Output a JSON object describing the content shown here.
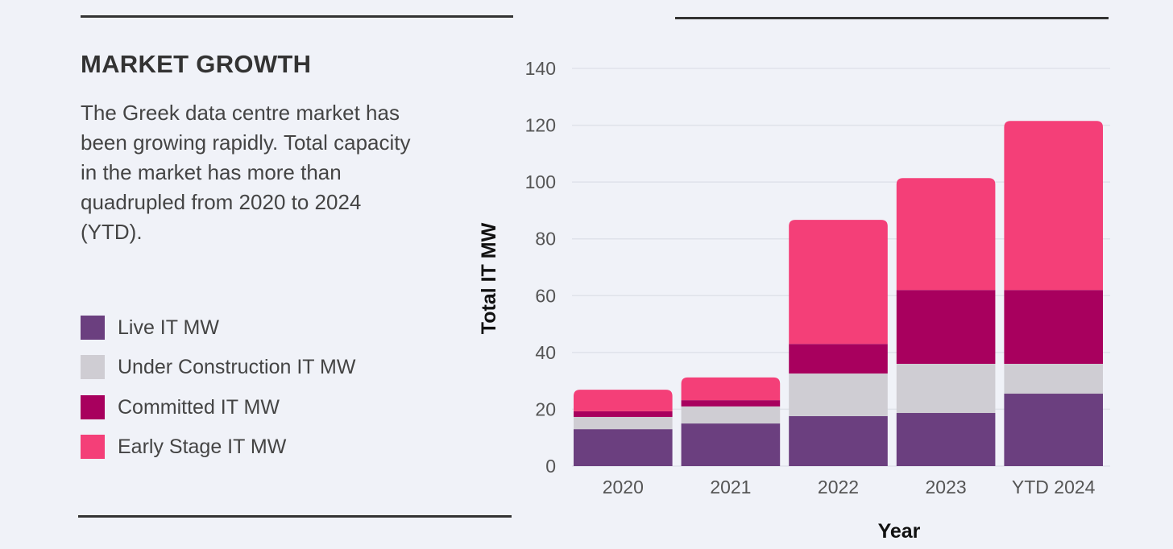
{
  "panel": {
    "title": "MARKET GROWTH",
    "description": "The Greek data centre market has been growing rapidly. Total capacity in the market has more than quadrupled from 2020 to 2024 (YTD)."
  },
  "chart_data": {
    "type": "bar",
    "stacked": true,
    "title": "",
    "xlabel": "Year",
    "ylabel": "Total IT MW",
    "ylim": [
      0,
      140
    ],
    "yticks": [
      0,
      20,
      40,
      60,
      80,
      100,
      120,
      140
    ],
    "grid": true,
    "legend_position": "left",
    "categories": [
      "2020",
      "2021",
      "2022",
      "2023",
      "YTD 2024"
    ],
    "series": [
      {
        "name": "Live IT MW",
        "color": "#6b3f7f",
        "values": [
          13,
          15,
          17.6,
          18.7,
          25.5
        ]
      },
      {
        "name": "Under Construction IT MW",
        "color": "#cfcdd3",
        "values": [
          4.3,
          6,
          15,
          17.3,
          10.5
        ]
      },
      {
        "name": "Committed IT MW",
        "color": "#a8005e",
        "values": [
          2,
          2.2,
          10.4,
          26,
          26
        ]
      },
      {
        "name": "Early Stage IT MW",
        "color": "#f43f78",
        "values": [
          7.6,
          8,
          43.7,
          39.4,
          59.5
        ]
      }
    ]
  }
}
